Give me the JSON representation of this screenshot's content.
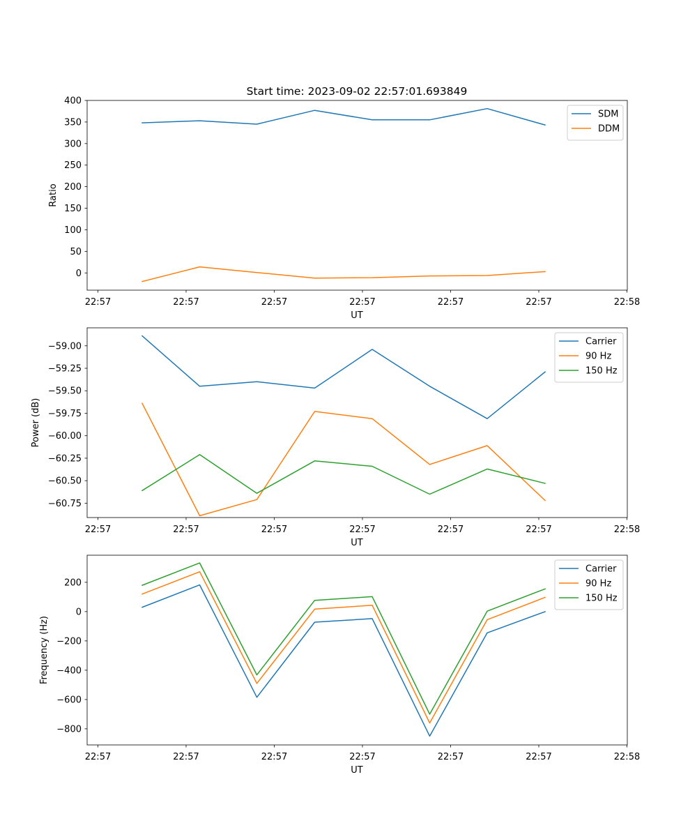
{
  "title": "Start time: 2023-09-02 22:57:01.693849",
  "chart_data": [
    {
      "type": "line",
      "title": "Start time: 2023-09-02 22:57:01.693849",
      "xlabel": "UT",
      "ylabel": "Ratio",
      "x_ticks": [
        "22:57",
        "22:57",
        "22:57",
        "22:57",
        "22:57",
        "22:57",
        "22:58"
      ],
      "y_ticks": [
        "0",
        "50",
        "100",
        "150",
        "200",
        "250",
        "300",
        "350",
        "400"
      ],
      "ylim": [
        -40,
        400
      ],
      "legend": "top-right",
      "series": [
        {
          "name": "SDM",
          "color": "#1f77b4",
          "values": [
            348,
            353,
            345,
            377,
            355,
            355,
            381,
            343
          ]
        },
        {
          "name": "DDM",
          "color": "#ff7f0e",
          "values": [
            -20,
            14,
            1,
            -12,
            -11,
            -7,
            -6,
            3
          ]
        }
      ]
    },
    {
      "type": "line",
      "title": "",
      "xlabel": "UT",
      "ylabel": "Power (dB)",
      "x_ticks": [
        "22:57",
        "22:57",
        "22:57",
        "22:57",
        "22:57",
        "22:57",
        "22:58"
      ],
      "y_ticks": [
        "−60.75",
        "−60.50",
        "−60.25",
        "−60.00",
        "−59.75",
        "−59.50",
        "−59.25",
        "−59.00"
      ],
      "ylim": [
        -60.91,
        -58.8
      ],
      "legend": "top-right",
      "series": [
        {
          "name": "Carrier",
          "color": "#1f77b4",
          "values": [
            -58.89,
            -59.45,
            -59.4,
            -59.47,
            -59.04,
            -59.45,
            -59.81,
            -59.29
          ]
        },
        {
          "name": "90 Hz",
          "color": "#ff7f0e",
          "values": [
            -59.64,
            -60.89,
            -60.71,
            -59.73,
            -59.81,
            -60.32,
            -60.11,
            -60.72
          ]
        },
        {
          "name": "150 Hz",
          "color": "#2ca02c",
          "values": [
            -60.61,
            -60.21,
            -60.64,
            -60.28,
            -60.34,
            -60.65,
            -60.37,
            -60.53
          ]
        }
      ]
    },
    {
      "type": "line",
      "title": "",
      "xlabel": "UT",
      "ylabel": "Frequency (Hz)",
      "x_ticks": [
        "22:57",
        "22:57",
        "22:57",
        "22:57",
        "22:57",
        "22:57",
        "22:58"
      ],
      "y_ticks": [
        "−800",
        "−600",
        "−400",
        "−200",
        "0",
        "200"
      ],
      "ylim": [
        -910,
        385
      ],
      "legend": "top-right",
      "series": [
        {
          "name": "Carrier",
          "color": "#1f77b4",
          "values": [
            30,
            182,
            -585,
            -72,
            -48,
            -850,
            -145,
            0
          ]
        },
        {
          "name": "90 Hz",
          "color": "#ff7f0e",
          "values": [
            120,
            272,
            -490,
            17,
            43,
            -760,
            -55,
            97
          ]
        },
        {
          "name": "150 Hz",
          "color": "#2ca02c",
          "values": [
            180,
            332,
            -432,
            77,
            102,
            -700,
            3,
            155
          ]
        }
      ]
    }
  ]
}
